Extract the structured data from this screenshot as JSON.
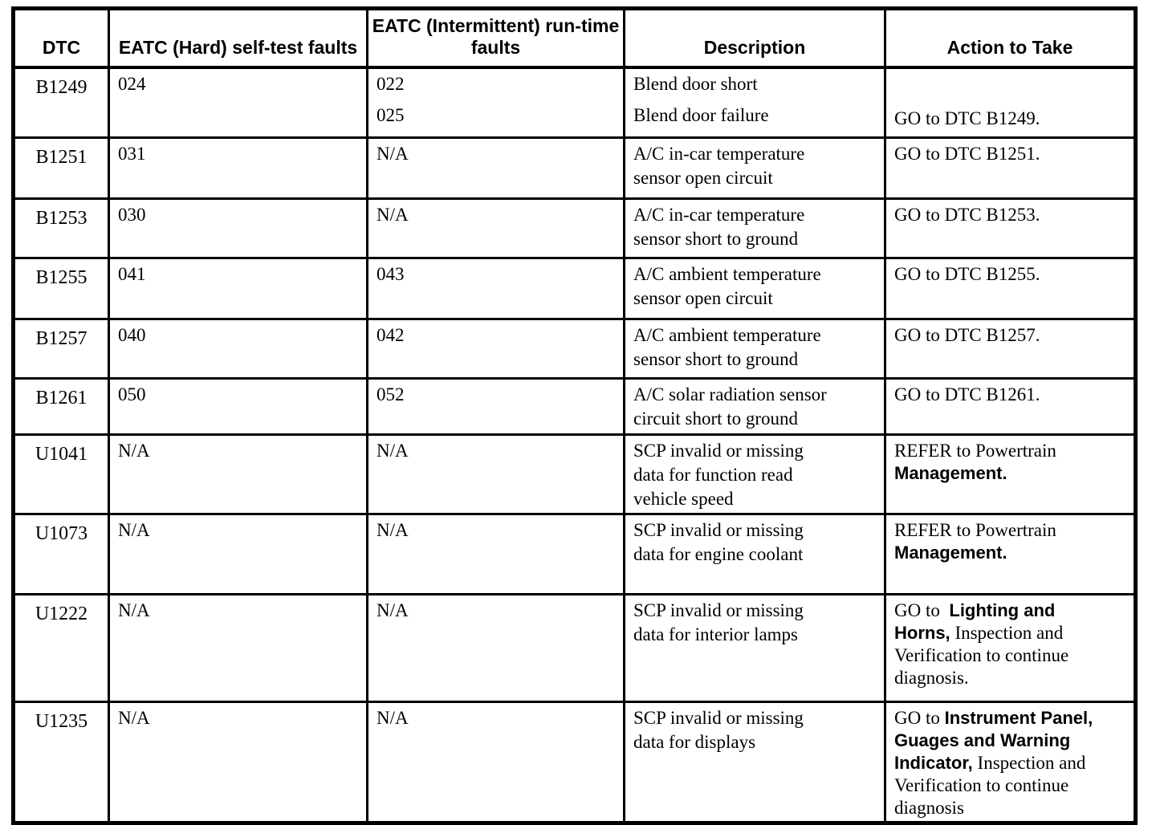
{
  "meta": {
    "paper_color": "#ffffff",
    "ink_color": "#000000",
    "document_kind": "scanned service-manual DTC index table"
  },
  "table": {
    "columns": [
      {
        "key": "dtc",
        "label": "DTC"
      },
      {
        "key": "hard",
        "label": "EATC (Hard) self-test faults"
      },
      {
        "key": "intermittent",
        "label": "EATC (Intermittent) run-time faults"
      },
      {
        "key": "description",
        "label": "Description"
      },
      {
        "key": "action",
        "label": "Action to Take"
      }
    ],
    "rows": [
      {
        "dtc": "B1249",
        "hard": [
          "024"
        ],
        "intermittent": [
          "022",
          "025"
        ],
        "description": [
          "Blend door short",
          "Blend door failure"
        ],
        "action": [
          [
            {
              "t": "GO to DTC B1249."
            }
          ]
        ],
        "spread": true,
        "action_at_bottom": true
      },
      {
        "dtc": "B1251",
        "hard": [
          "031"
        ],
        "intermittent": [
          "N/A"
        ],
        "description": [
          "A/C in-car temperature",
          "sensor open circuit"
        ],
        "action": [
          [
            {
              "t": "GO to DTC B1251."
            }
          ]
        ]
      },
      {
        "dtc": "B1253",
        "hard": [
          "030"
        ],
        "intermittent": [
          "N/A"
        ],
        "description": [
          "A/C in-car temperature",
          "sensor short to ground"
        ],
        "action": [
          [
            {
              "t": "GO to DTC B1253."
            }
          ]
        ]
      },
      {
        "dtc": "B1255",
        "hard": [
          "041"
        ],
        "intermittent": [
          "043"
        ],
        "description": [
          "A/C ambient temperature",
          "sensor open circuit"
        ],
        "action": [
          [
            {
              "t": "GO to DTC B1255."
            }
          ]
        ]
      },
      {
        "dtc": "B1257",
        "hard": [
          "040"
        ],
        "intermittent": [
          "042"
        ],
        "description": [
          "A/C ambient temperature",
          "sensor short to ground"
        ],
        "action": [
          [
            {
              "t": "GO to DTC B1257."
            }
          ]
        ]
      },
      {
        "dtc": "B1261",
        "hard": [
          "050"
        ],
        "intermittent": [
          "052"
        ],
        "description": [
          "A/C solar radiation sensor",
          "circuit short to ground"
        ],
        "action": [
          [
            {
              "t": "GO to DTC B1261."
            }
          ]
        ]
      },
      {
        "dtc": "U1041",
        "hard": [
          "N/A"
        ],
        "intermittent": [
          "N/A"
        ],
        "description": [
          "SCP invalid or missing",
          "data for function read",
          "vehicle speed"
        ],
        "action": [
          [
            {
              "t": "REFER to Powertrain"
            }
          ],
          [
            {
              "t": "Management.",
              "b": true
            }
          ]
        ]
      },
      {
        "dtc": "U1073",
        "hard": [
          "N/A"
        ],
        "intermittent": [
          "N/A"
        ],
        "description": [
          "SCP invalid or missing",
          "data for engine coolant"
        ],
        "action": [
          [
            {
              "t": "REFER to Powertrain"
            }
          ],
          [
            {
              "t": "Management.",
              "b": true
            }
          ]
        ]
      },
      {
        "dtc": "U1222",
        "hard": [
          "N/A"
        ],
        "intermittent": [
          "N/A"
        ],
        "description": [
          "SCP invalid or missing",
          "data for interior lamps"
        ],
        "action": [
          [
            {
              "t": "GO to  "
            },
            {
              "t": "Lighting and",
              "b": true
            }
          ],
          [
            {
              "t": "Horns,",
              "b": true
            },
            {
              "t": " Inspection and"
            }
          ],
          [
            {
              "t": "Verification to continue"
            }
          ],
          [
            {
              "t": "diagnosis."
            }
          ]
        ]
      },
      {
        "dtc": "U1235",
        "hard": [
          "N/A"
        ],
        "intermittent": [
          "N/A"
        ],
        "description": [
          "SCP invalid or missing",
          "data for displays"
        ],
        "action": [
          [
            {
              "t": "GO to "
            },
            {
              "t": "Instrument Panel,",
              "b": true
            }
          ],
          [
            {
              "t": "Guages and Warning",
              "b": true
            }
          ],
          [
            {
              "t": "Indicator,",
              "b": true
            },
            {
              "t": " Inspection and"
            }
          ],
          [
            {
              "t": "Verification to continue"
            }
          ],
          [
            {
              "t": "diagnosis"
            }
          ]
        ]
      }
    ]
  }
}
